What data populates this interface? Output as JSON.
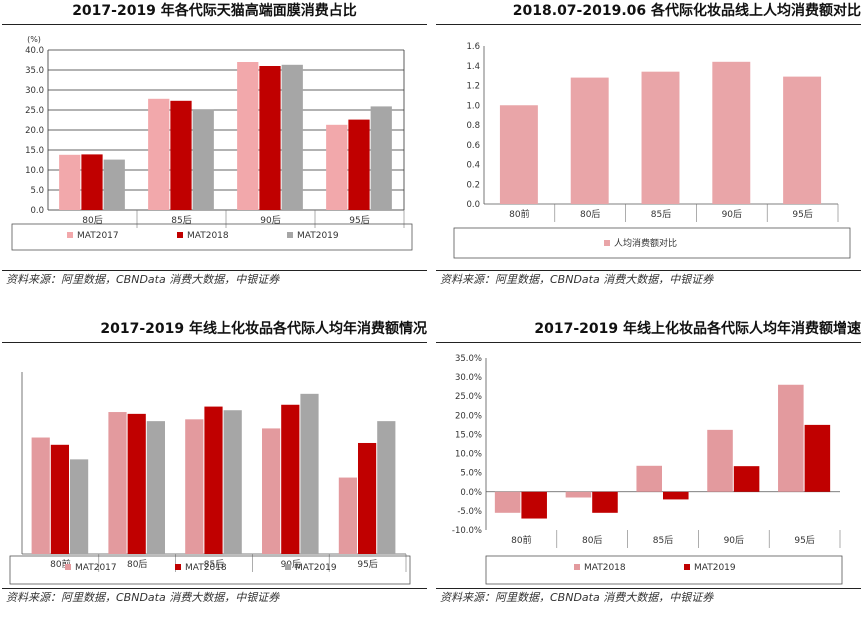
{
  "source_text": "资料来源：阿里数据，CBNData 消费大数据，中银证券",
  "chart_data": [
    {
      "type": "bar",
      "title": "2017-2019 年各代际天猫高端面膜消费占比",
      "ylabel": "(%)",
      "categories": [
        "80后",
        "85后",
        "90后",
        "95后"
      ],
      "ylim": [
        0,
        40
      ],
      "yticks": [
        "0.0",
        "5.0",
        "10.0",
        "15.0",
        "20.0",
        "25.0",
        "30.0",
        "35.0",
        "40.0"
      ],
      "series": [
        {
          "name": "MAT2017",
          "color": "#f2a8ab",
          "values": [
            13.8,
            27.8,
            37.0,
            21.3
          ]
        },
        {
          "name": "MAT2018",
          "color": "#c00000",
          "values": [
            13.9,
            27.3,
            36.0,
            22.6
          ]
        },
        {
          "name": "MAT2019",
          "color": "#a6a6a6",
          "values": [
            12.6,
            25.2,
            36.3,
            25.9
          ]
        }
      ],
      "legend": "bottom",
      "grid": true
    },
    {
      "type": "bar",
      "title": "2018.07-2019.06 各代际化妆品线上人均消费额对比",
      "categories": [
        "80前",
        "80后",
        "85后",
        "90后",
        "95后"
      ],
      "ylim": [
        0,
        1.6
      ],
      "yticks": [
        "0.0",
        "0.2",
        "0.4",
        "0.6",
        "0.8",
        "1.0",
        "1.2",
        "1.4",
        "1.6"
      ],
      "series": [
        {
          "name": "人均消费额对比",
          "color": "#e9a5a8",
          "values": [
            1.0,
            1.28,
            1.34,
            1.44,
            1.29
          ]
        }
      ],
      "legend": "bottom",
      "grid": false
    },
    {
      "type": "bar",
      "title": "2017-2019 年线上化妆品各代际人均年消费额情况",
      "categories": [
        "80前",
        "80后",
        "85后",
        "90后",
        "95后"
      ],
      "ylim": [
        0,
        100
      ],
      "series": [
        {
          "name": "MAT2017",
          "color": "#e39a9e",
          "values": [
            64,
            78,
            74,
            69,
            42
          ]
        },
        {
          "name": "MAT2018",
          "color": "#c00000",
          "values": [
            60,
            77,
            81,
            82,
            61
          ]
        },
        {
          "name": "MAT2019",
          "color": "#a6a6a6",
          "values": [
            52,
            73,
            79,
            88,
            73
          ]
        }
      ],
      "legend": "bottom",
      "grid": false
    },
    {
      "type": "bar",
      "title": "2017-2019 年线上化妆品各代际人均年消费额增速",
      "categories": [
        "80前",
        "80后",
        "85后",
        "90后",
        "95后"
      ],
      "ylim": [
        -10,
        35
      ],
      "yticks": [
        "-10.0%",
        "-5.0%",
        "0.0%",
        "5.0%",
        "10.0%",
        "15.0%",
        "20.0%",
        "25.0%",
        "30.0%",
        "35.0%"
      ],
      "series": [
        {
          "name": "MAT2018",
          "color": "#e39a9e",
          "values": [
            -5.5,
            -1.5,
            6.8,
            16.2,
            28.0
          ]
        },
        {
          "name": "MAT2019",
          "color": "#c00000",
          "values": [
            -7.0,
            -5.5,
            -2.0,
            6.7,
            17.5
          ]
        }
      ],
      "legend": "bottom",
      "grid": false
    }
  ]
}
